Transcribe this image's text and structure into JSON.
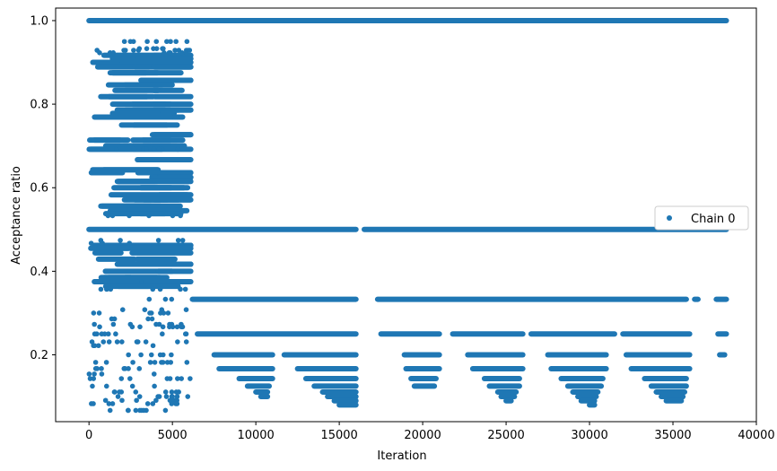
{
  "chart_data": {
    "type": "scatter",
    "title": "",
    "xlabel": "Iteration",
    "ylabel": "Acceptance ratio",
    "xlim": [
      -2000,
      40000
    ],
    "ylim": [
      0.04,
      1.03
    ],
    "x_ticks": [
      0,
      5000,
      10000,
      15000,
      20000,
      25000,
      30000,
      35000,
      40000
    ],
    "x_tick_labels": [
      "0",
      "5000",
      "10000",
      "15000",
      "20000",
      "25000",
      "30000",
      "35000",
      "40000"
    ],
    "y_ticks": [
      0.2,
      0.4,
      0.6,
      0.8,
      1.0
    ],
    "y_tick_labels": [
      "0.2",
      "0.4",
      "0.6",
      "0.8",
      "1.0"
    ],
    "grid": false,
    "legend": {
      "position": "right",
      "entries": [
        "Chain 0"
      ]
    },
    "colors": {
      "series": "#1f77b4"
    },
    "series": [
      {
        "name": "Chain 0",
        "levels": [
          {
            "y": 1.0,
            "segments": [
              [
                0,
                38200
              ]
            ]
          },
          {
            "y": 0.5,
            "segments": [
              [
                0,
                16000
              ],
              [
                16500,
                38200
              ]
            ]
          },
          {
            "y": 0.333,
            "segments": [
              [
                6200,
                16000
              ],
              [
                17300,
                35800
              ],
              [
                36300,
                36500
              ],
              [
                37600,
                38200
              ]
            ]
          },
          {
            "y": 0.25,
            "segments": [
              [
                6500,
                16000
              ],
              [
                17500,
                21000
              ],
              [
                21800,
                26000
              ],
              [
                26500,
                31500
              ],
              [
                32000,
                36000
              ],
              [
                37700,
                38200
              ]
            ]
          },
          {
            "y": 0.2,
            "segments": [
              [
                7500,
                11000
              ],
              [
                11700,
                16000
              ],
              [
                18900,
                21000
              ],
              [
                22700,
                26000
              ],
              [
                27500,
                31000
              ],
              [
                32200,
                36000
              ],
              [
                37800,
                38100
              ]
            ]
          },
          {
            "y": 0.1667,
            "segments": [
              [
                7800,
                11000
              ],
              [
                12500,
                16000
              ],
              [
                19000,
                21000
              ],
              [
                23000,
                26000
              ],
              [
                27700,
                31000
              ],
              [
                32500,
                36000
              ]
            ]
          },
          {
            "y": 0.143,
            "segments": [
              [
                9000,
                11000
              ],
              [
                13000,
                16000
              ],
              [
                19300,
                20800
              ],
              [
                23700,
                25800
              ],
              [
                28300,
                30800
              ],
              [
                33300,
                35800
              ]
            ]
          },
          {
            "y": 0.125,
            "segments": [
              [
                9500,
                10800
              ],
              [
                13500,
                16000
              ],
              [
                19500,
                20700
              ],
              [
                24000,
                25800
              ],
              [
                28700,
                30700
              ],
              [
                33700,
                35800
              ]
            ]
          },
          {
            "y": 0.111,
            "segments": [
              [
                10000,
                10700
              ],
              [
                14000,
                16000
              ],
              [
                24500,
                25600
              ],
              [
                29000,
                30500
              ],
              [
                34000,
                35700
              ]
            ]
          },
          {
            "y": 0.1,
            "segments": [
              [
                10300,
                10700
              ],
              [
                14300,
                16000
              ],
              [
                24700,
                25500
              ],
              [
                29300,
                30400
              ],
              [
                34300,
                35600
              ]
            ]
          },
          {
            "y": 0.09,
            "segments": [
              [
                14700,
                16000
              ],
              [
                25000,
                25300
              ],
              [
                29500,
                30300
              ],
              [
                34600,
                35500
              ]
            ]
          },
          {
            "y": 0.08,
            "segments": [
              [
                15000,
                16000
              ],
              [
                30000,
                30300
              ]
            ]
          }
        ],
        "early_band": {
          "x_range": [
            0,
            6100
          ],
          "dense_levels": [
            0.917,
            0.909,
            0.9,
            0.889,
            0.875,
            0.857,
            0.846,
            0.833,
            0.818,
            0.8,
            0.786,
            0.778,
            0.769,
            0.75,
            0.727,
            0.714,
            0.7,
            0.692,
            0.667,
            0.643,
            0.636,
            0.625,
            0.615,
            0.6,
            0.583,
            0.571,
            0.556,
            0.545,
            0.538,
            0.462,
            0.455,
            0.444,
            0.429,
            0.417,
            0.4,
            0.385,
            0.375,
            0.364
          ],
          "sparse_levels": [
            0.95,
            0.933,
            0.929,
            0.923,
            0.692,
            0.533,
            0.474,
            0.467,
            0.357,
            0.333,
            0.308,
            0.3,
            0.286,
            0.273,
            0.267,
            0.25,
            0.231,
            0.222,
            0.2,
            0.182,
            0.167,
            0.154,
            0.143,
            0.125,
            0.111,
            0.1,
            0.091,
            0.083,
            0.067
          ]
        }
      }
    ]
  }
}
